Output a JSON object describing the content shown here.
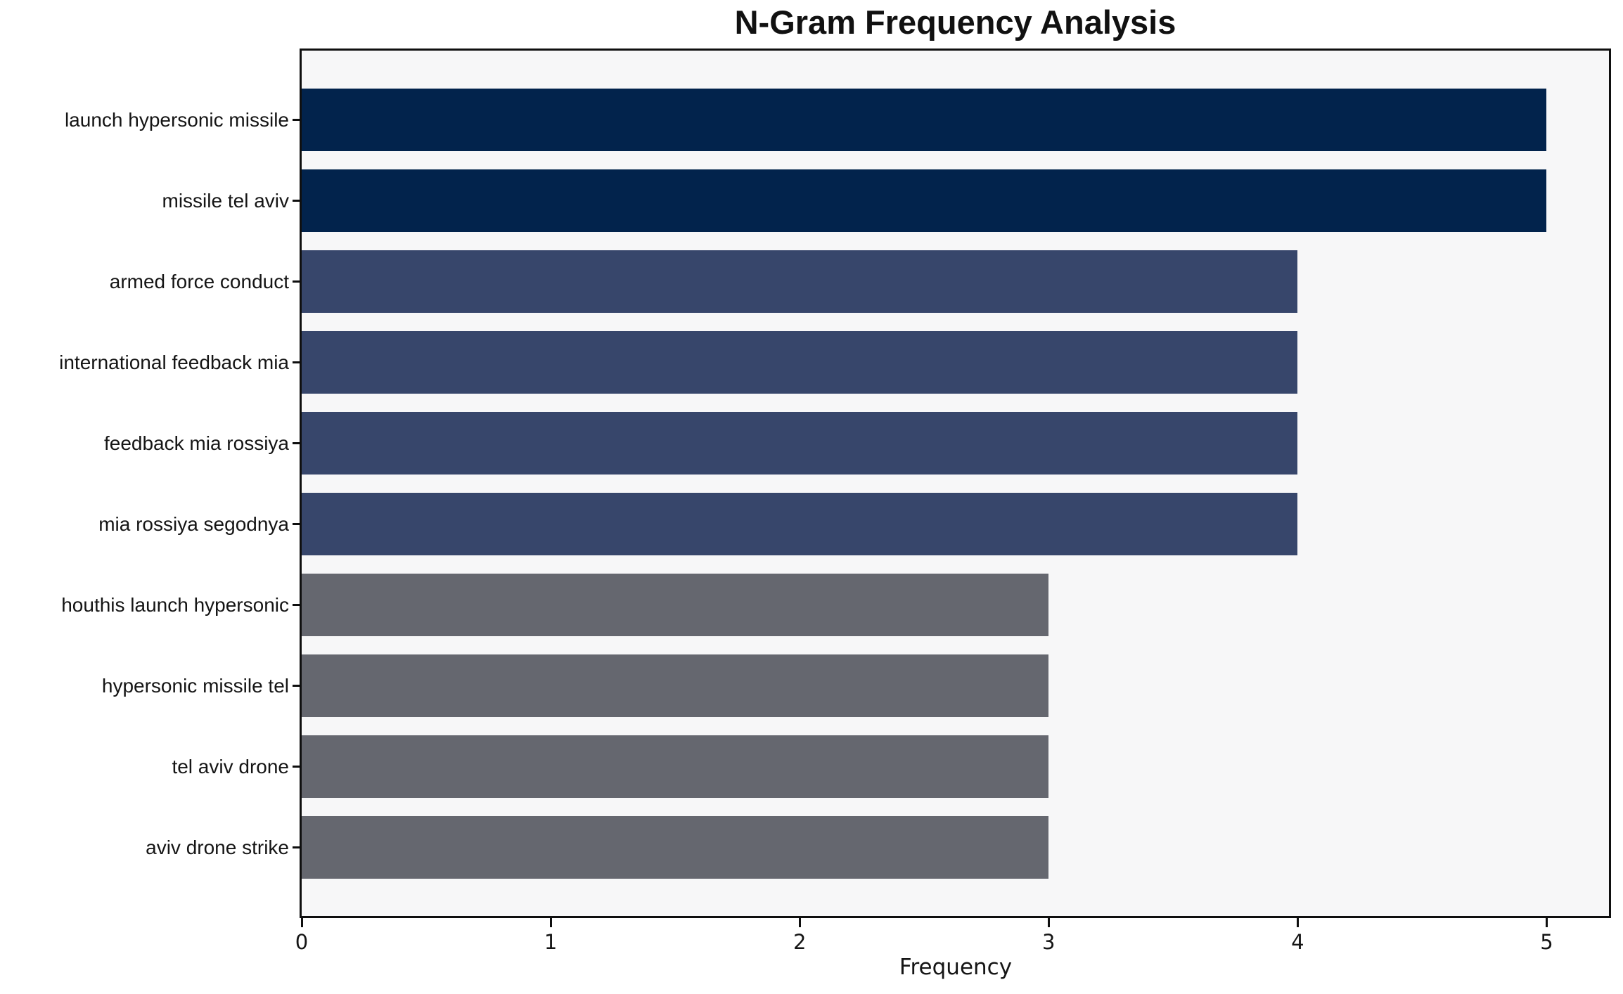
{
  "chart_data": {
    "type": "bar",
    "orientation": "horizontal",
    "title": "N-Gram Frequency Analysis",
    "xlabel": "Frequency",
    "ylabel": "",
    "categories": [
      "launch hypersonic missile",
      "missile tel aviv",
      "armed force conduct",
      "international feedback mia",
      "feedback mia rossiya",
      "mia rossiya segodnya",
      "houthis launch hypersonic",
      "hypersonic missile tel",
      "tel aviv drone",
      "aviv drone strike"
    ],
    "values": [
      5,
      5,
      4,
      4,
      4,
      4,
      3,
      3,
      3,
      3
    ],
    "bar_colors": [
      "#02234c",
      "#02234c",
      "#37466b",
      "#37466b",
      "#37466b",
      "#37466b",
      "#65676f",
      "#65676f",
      "#65676f",
      "#65676f"
    ],
    "x_ticks": [
      0,
      1,
      2,
      3,
      4,
      5
    ],
    "xlim": [
      0,
      5.25
    ],
    "grid": false,
    "legend": null,
    "plot_background": "#f7f7f8",
    "figure_background": "#ffffff",
    "color_legend_semantics": {
      "#02234c": "frequency 5",
      "#37466b": "frequency 4",
      "#65676f": "frequency 3"
    }
  }
}
